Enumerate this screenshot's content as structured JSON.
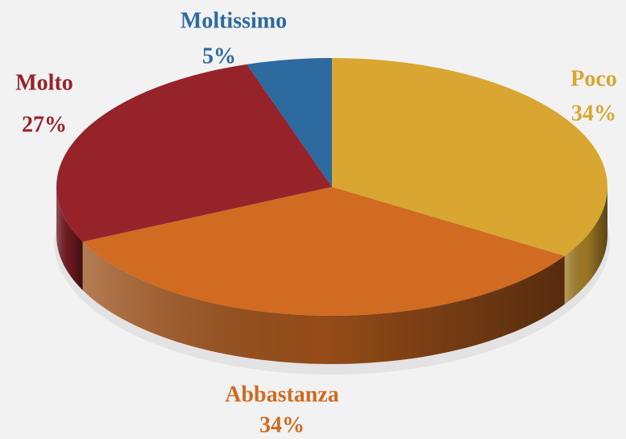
{
  "chart_data": {
    "type": "pie",
    "categories": [
      "Poco",
      "Abbastanza",
      "Molto",
      "Moltissimo"
    ],
    "values": [
      34,
      34,
      27,
      5
    ],
    "value_labels": [
      "34%",
      "34%",
      "27%",
      "5%"
    ],
    "colors": [
      "#D9A632",
      "#D06B21",
      "#97232A",
      "#2C6AA0"
    ],
    "start_angle": "top",
    "direction": "clockwise",
    "3d": true
  }
}
